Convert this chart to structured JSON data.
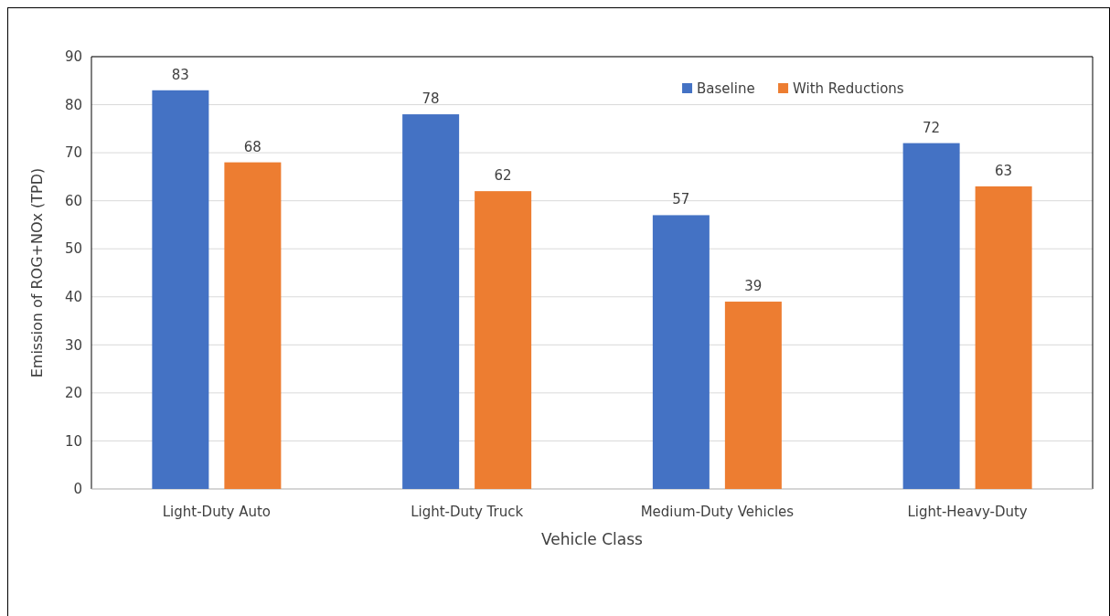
{
  "chart_data": {
    "type": "bar",
    "xlabel": "Vehicle Class",
    "ylabel": "Emission of ROG+NOx (TPD)",
    "categories": [
      "Light-Duty Auto",
      "Light-Duty Truck",
      "Medium-Duty Vehicles",
      "Light-Heavy-Duty"
    ],
    "series": [
      {
        "name": "Baseline",
        "color": "#4472c4",
        "values": [
          83,
          78,
          57,
          72
        ]
      },
      {
        "name": "With Reductions",
        "color": "#ed7d31",
        "values": [
          68,
          62,
          39,
          63
        ]
      }
    ],
    "ylim": [
      0,
      90
    ],
    "yticks": [
      0,
      10,
      20,
      30,
      40,
      50,
      60,
      70,
      80,
      90
    ],
    "grid": "y",
    "legend": "top",
    "data_labels": true
  }
}
